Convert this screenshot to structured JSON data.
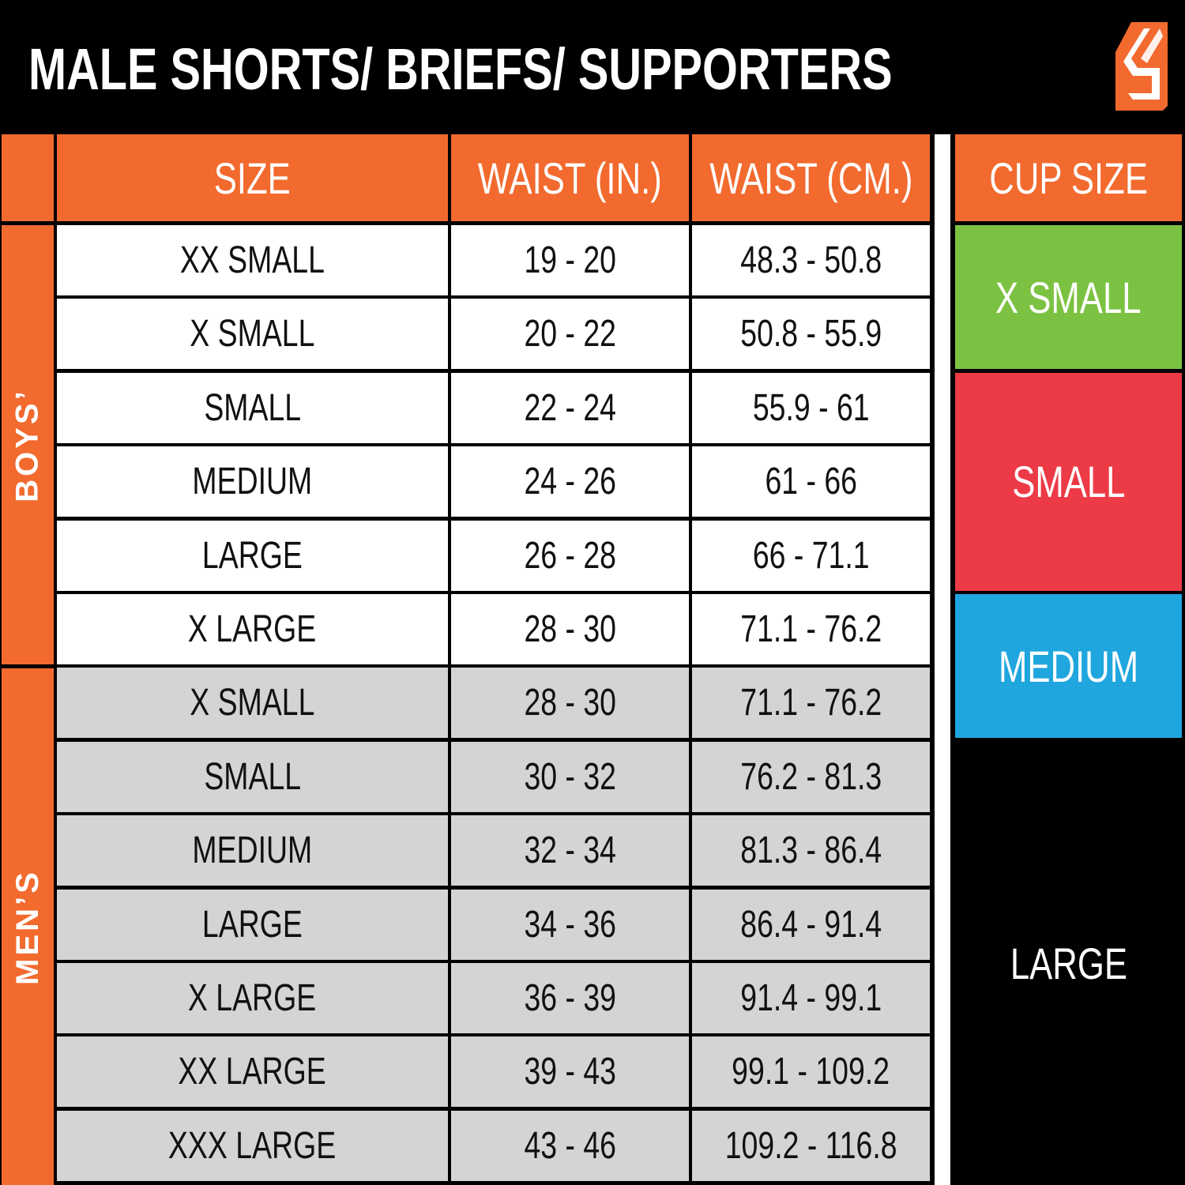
{
  "title": "MALE SHORTS/ BRIEFS/ SUPPORTERS",
  "logo": {
    "name": "brand-logo",
    "color": "#f26a2e"
  },
  "colors": {
    "orange": "#f26a2e",
    "green": "#7cc242",
    "red": "#ec3b46",
    "blue": "#1fa6de",
    "gray": "#d3d4d6"
  },
  "headers": {
    "size": "SIZE",
    "waist_in": "WAIST (IN.)",
    "waist_cm": "WAIST (CM.)",
    "cup": "CUP SIZE"
  },
  "groups": {
    "boys": "BOYS’",
    "mens": "MEN’S"
  },
  "rows": [
    {
      "group": "boys",
      "size": "XX SMALL",
      "in": "19 - 20",
      "cm": "48.3 - 50.8"
    },
    {
      "group": "boys",
      "size": "X SMALL",
      "in": "20 - 22",
      "cm": "50.8 - 55.9"
    },
    {
      "group": "boys",
      "size": "SMALL",
      "in": "22 - 24",
      "cm": "55.9 - 61"
    },
    {
      "group": "boys",
      "size": "MEDIUM",
      "in": "24 - 26",
      "cm": "61 - 66"
    },
    {
      "group": "boys",
      "size": "LARGE",
      "in": "26 - 28",
      "cm": "66 - 71.1"
    },
    {
      "group": "boys",
      "size": "X LARGE",
      "in": "28 - 30",
      "cm": "71.1 - 76.2"
    },
    {
      "group": "mens",
      "size": "X SMALL",
      "in": "28 - 30",
      "cm": "71.1 - 76.2"
    },
    {
      "group": "mens",
      "size": "SMALL",
      "in": "30 - 32",
      "cm": "76.2 - 81.3"
    },
    {
      "group": "mens",
      "size": "MEDIUM",
      "in": "32 - 34",
      "cm": "81.3 - 86.4"
    },
    {
      "group": "mens",
      "size": "LARGE",
      "in": "34 - 36",
      "cm": "86.4 - 91.4"
    },
    {
      "group": "mens",
      "size": "X LARGE",
      "in": "36 - 39",
      "cm": "91.4 - 99.1"
    },
    {
      "group": "mens",
      "size": "XX LARGE",
      "in": "39 - 43",
      "cm": "99.1 - 109.2"
    },
    {
      "group": "mens",
      "size": "XXX LARGE",
      "in": "43 - 46",
      "cm": "109.2 - 116.8"
    }
  ],
  "cups": [
    {
      "label": "X SMALL",
      "color": "#7cc242",
      "rows": 2
    },
    {
      "label": "SMALL",
      "color": "#ec3b46",
      "rows": 3
    },
    {
      "label": "MEDIUM",
      "color": "#1fa6de",
      "rows": 2
    },
    {
      "label": "LARGE",
      "color": "#000000",
      "rows": 6
    }
  ]
}
